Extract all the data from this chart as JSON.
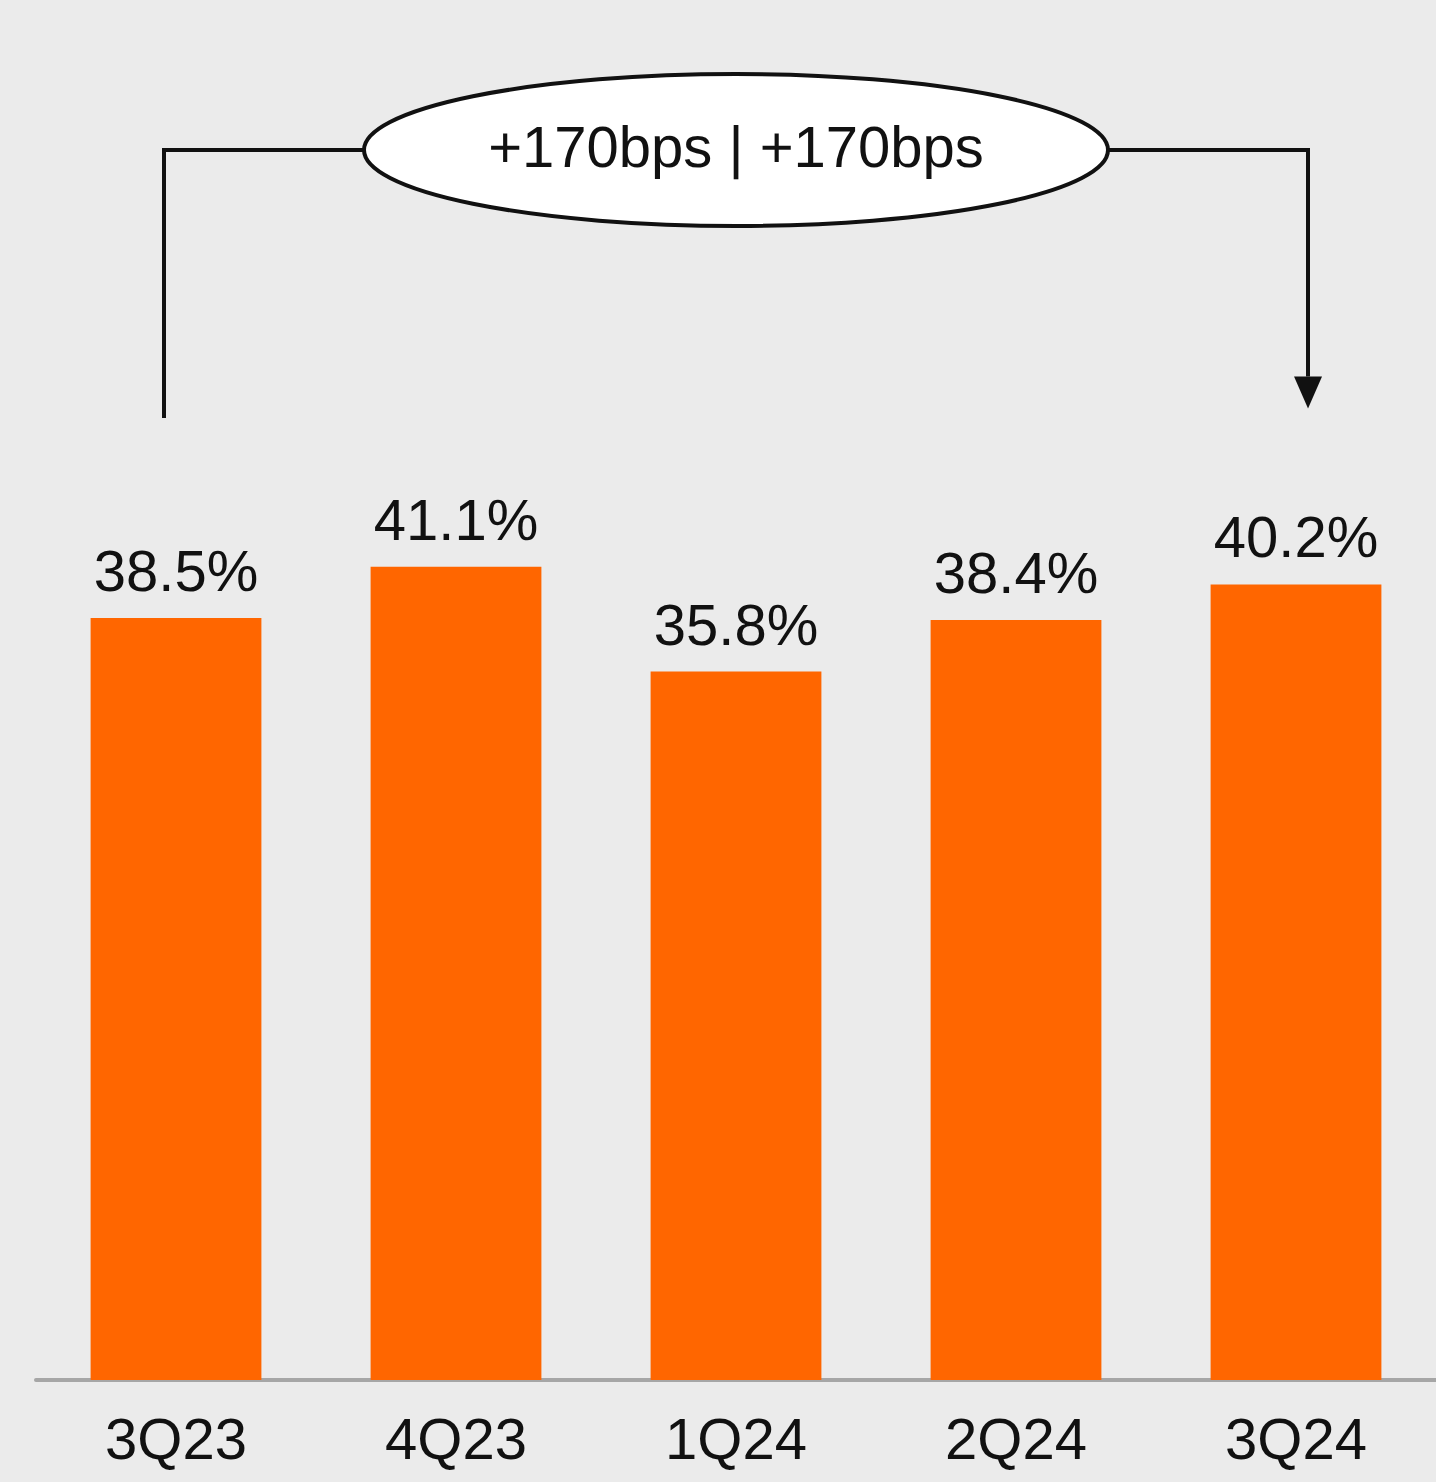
{
  "chart_data": {
    "type": "bar",
    "categories": [
      "3Q23",
      "4Q23",
      "1Q24",
      "2Q24",
      "3Q24"
    ],
    "values": [
      38.5,
      41.1,
      35.8,
      38.4,
      40.2
    ],
    "value_labels": [
      "38.5%",
      "41.1%",
      "35.8%",
      "38.4%",
      "40.2%"
    ],
    "color": "#ff6600",
    "annotations": [
      "+170bps | +170bps"
    ]
  }
}
